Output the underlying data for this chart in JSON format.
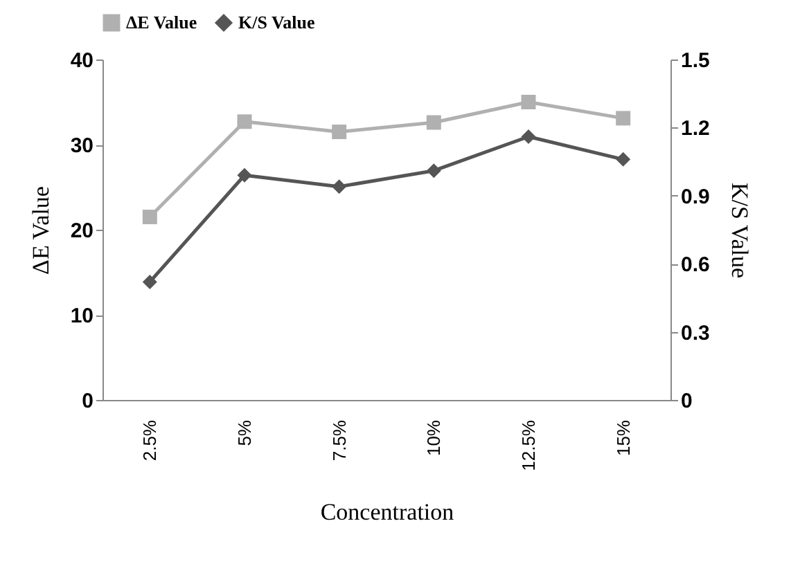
{
  "chart_data": {
    "type": "line",
    "xlabel": "Concentration",
    "ylabel": "ΔE  Value",
    "y2label": "K/S  Value",
    "categories": [
      "2.5%",
      "5%",
      "7.5%",
      "10%",
      "12.5%",
      "15%"
    ],
    "series": [
      {
        "name": "ΔE Value",
        "color": "#b0b0b0",
        "marker": "square",
        "values": [
          21.5,
          32.7,
          31.5,
          32.6,
          35.0,
          33.1
        ]
      },
      {
        "name": "K/S Value",
        "color": "#555555",
        "marker": "diamond",
        "axis": "y2",
        "values": [
          0.52,
          0.99,
          0.94,
          1.01,
          1.16,
          1.06
        ]
      }
    ],
    "ylim": [
      0,
      40
    ],
    "yticks": [
      0,
      10,
      20,
      30,
      40
    ],
    "y2lim": [
      0,
      1.5
    ],
    "y2ticks": [
      0,
      0.3,
      0.6,
      0.9,
      1.2,
      1.5
    ],
    "grid": false,
    "legend": "top",
    "line_style": "solid"
  }
}
